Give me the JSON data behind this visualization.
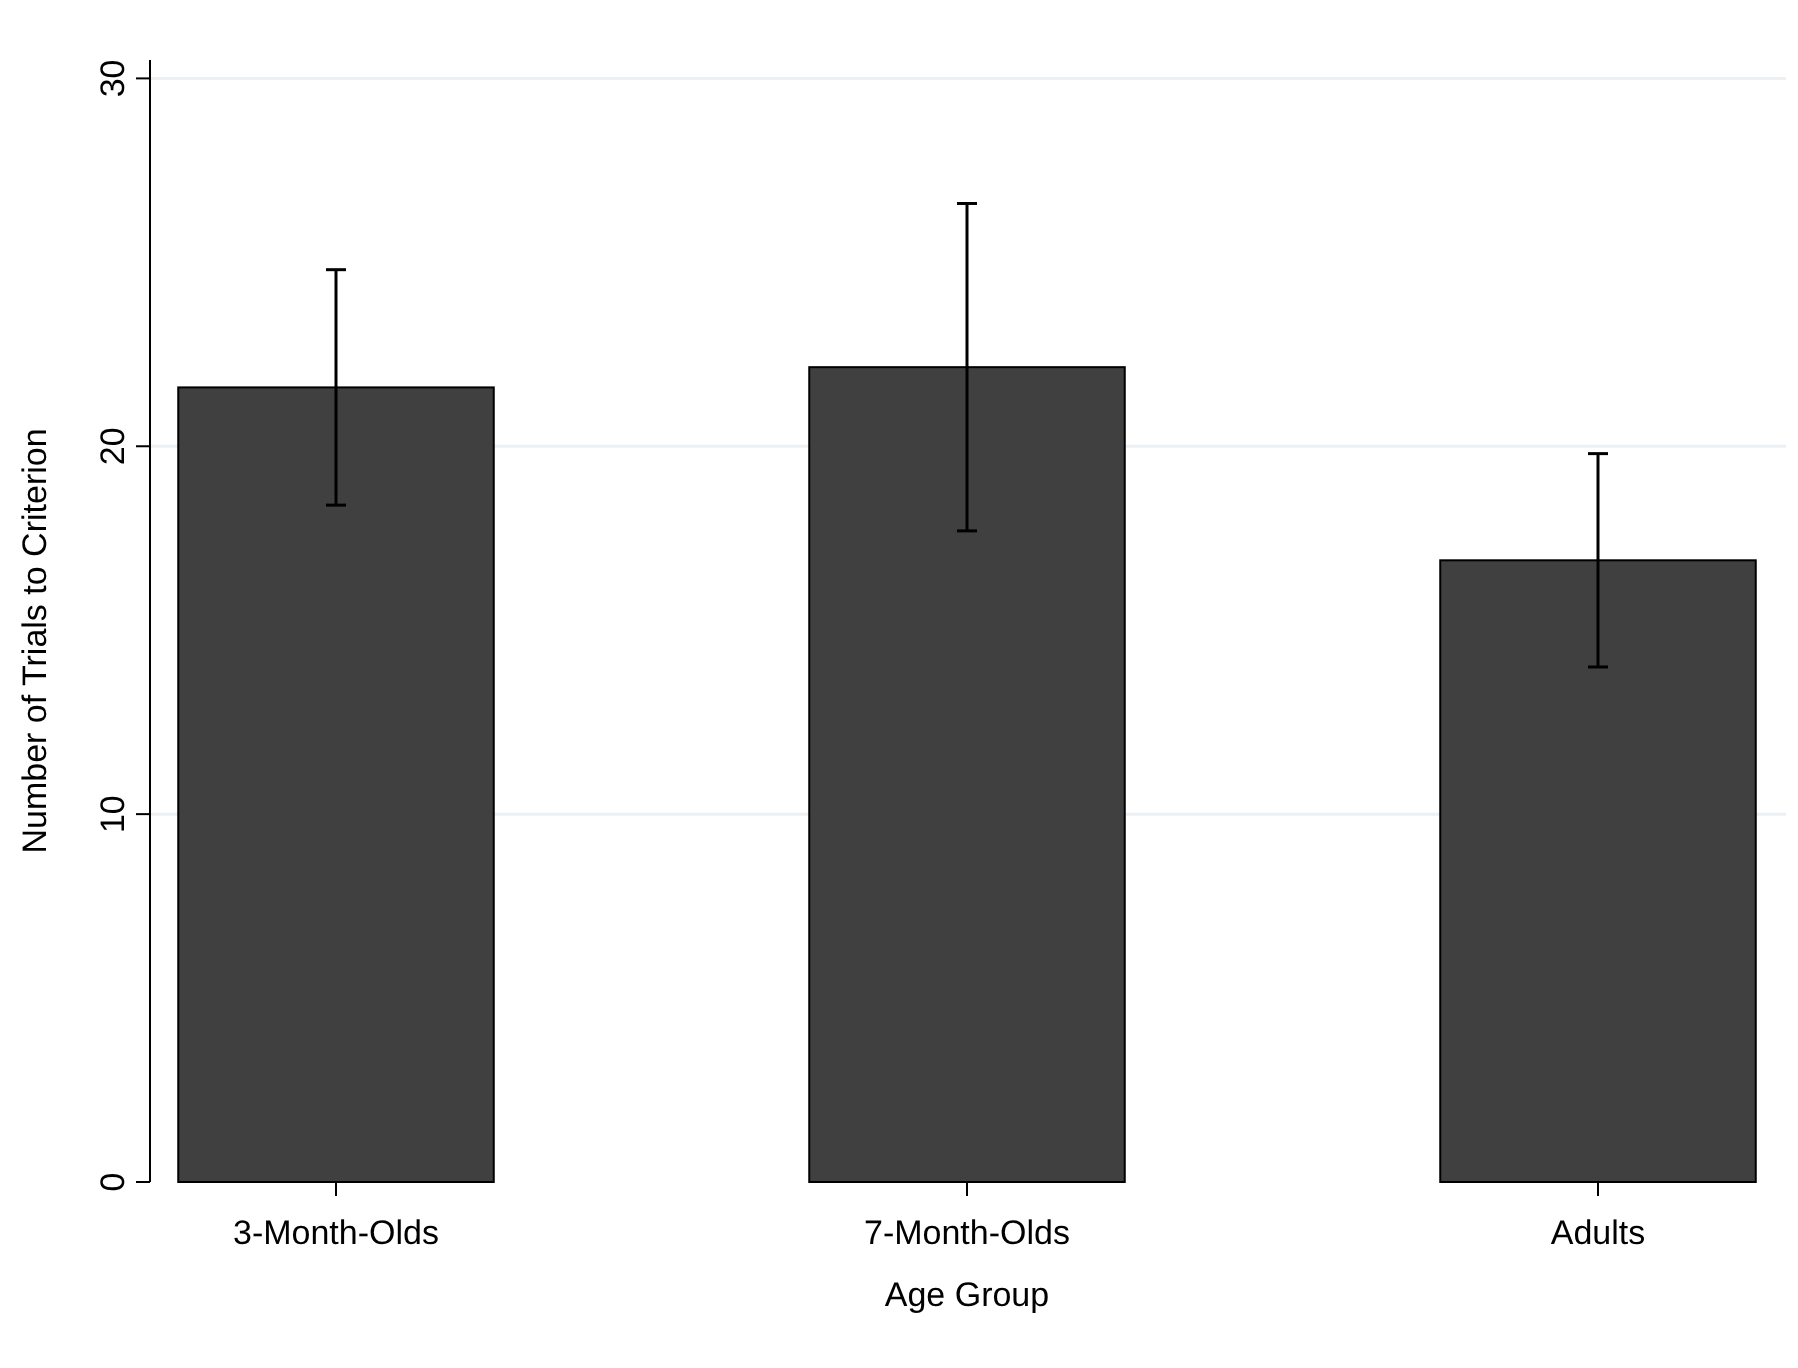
{
  "chart_data": {
    "type": "bar",
    "xlabel": "Age Group",
    "ylabel": "Number of Trials to Criterion",
    "categories": [
      "3-Month-Olds",
      "7-Month-Olds",
      "Adults"
    ],
    "values": [
      21.6,
      22.15,
      16.9
    ],
    "errors": [
      3.2,
      4.45,
      2.9
    ],
    "color": "#404040",
    "ylim": [
      0,
      30.5
    ],
    "yticks": [
      0,
      10,
      20,
      30
    ],
    "grid": "y"
  }
}
